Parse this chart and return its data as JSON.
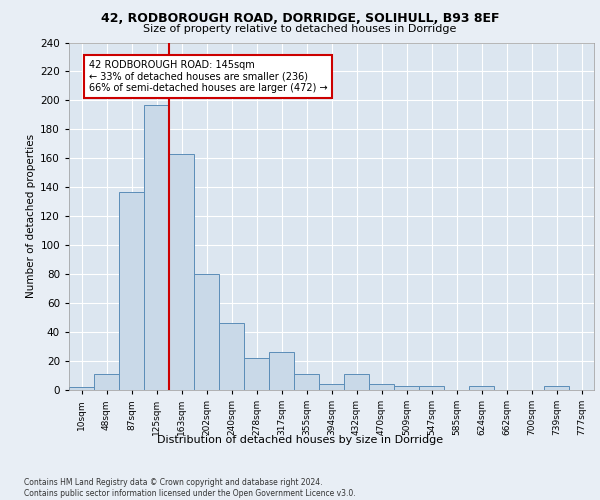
{
  "title1": "42, RODBOROUGH ROAD, DORRIDGE, SOLIHULL, B93 8EF",
  "title2": "Size of property relative to detached houses in Dorridge",
  "xlabel": "Distribution of detached houses by size in Dorridge",
  "ylabel": "Number of detached properties",
  "bar_labels": [
    "10sqm",
    "48sqm",
    "87sqm",
    "125sqm",
    "163sqm",
    "202sqm",
    "240sqm",
    "278sqm",
    "317sqm",
    "355sqm",
    "394sqm",
    "432sqm",
    "470sqm",
    "509sqm",
    "547sqm",
    "585sqm",
    "624sqm",
    "662sqm",
    "700sqm",
    "739sqm",
    "777sqm"
  ],
  "bar_values": [
    2,
    11,
    137,
    197,
    163,
    80,
    46,
    22,
    26,
    11,
    4,
    11,
    4,
    3,
    3,
    0,
    3,
    0,
    0,
    3,
    0
  ],
  "bar_color": "#c9d9e8",
  "bar_edge_color": "#5b8db8",
  "vline_x": 3.5,
  "vline_color": "#cc0000",
  "annotation_text": "42 RODBOROUGH ROAD: 145sqm\n← 33% of detached houses are smaller (236)\n66% of semi-detached houses are larger (472) →",
  "annotation_box_color": "#ffffff",
  "annotation_box_edge": "#cc0000",
  "bg_color": "#e8eef5",
  "plot_bg_color": "#dce6f0",
  "footer": "Contains HM Land Registry data © Crown copyright and database right 2024.\nContains public sector information licensed under the Open Government Licence v3.0.",
  "ylim": [
    0,
    240
  ],
  "yticks": [
    0,
    20,
    40,
    60,
    80,
    100,
    120,
    140,
    160,
    180,
    200,
    220,
    240
  ],
  "figsize": [
    6.0,
    5.0
  ],
  "dpi": 100
}
